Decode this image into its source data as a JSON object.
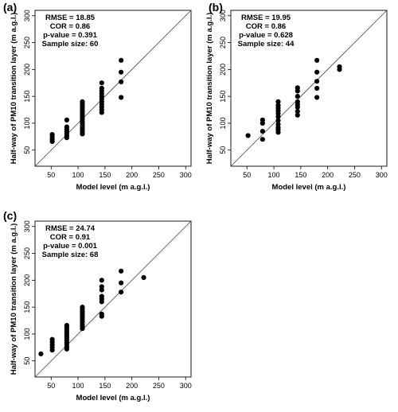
{
  "chart_data": [
    {
      "type": "scatter",
      "panel_label": "(a)",
      "xlabel": "Model level (m a.g.l.)",
      "ylabel": "Half-way of PM10 transition layer (m a.g.l.)",
      "xlim": [
        20,
        310
      ],
      "ylim": [
        20,
        310
      ],
      "x_ticks": [
        50,
        100,
        150,
        200,
        250,
        300
      ],
      "y_ticks": [
        50,
        100,
        150,
        200,
        250,
        300
      ],
      "reference_line": "1:1",
      "stats": [
        "RMSE = 18.85",
        "COR = 0.86",
        "p-value = 0.391",
        "Sample size: 60"
      ],
      "points": [
        [
          52,
          66
        ],
        [
          52,
          70
        ],
        [
          52,
          74
        ],
        [
          52,
          79
        ],
        [
          79,
          73
        ],
        [
          79,
          77
        ],
        [
          79,
          81
        ],
        [
          79,
          85
        ],
        [
          79,
          89
        ],
        [
          79,
          93
        ],
        [
          79,
          106
        ],
        [
          108,
          80
        ],
        [
          108,
          84
        ],
        [
          108,
          88
        ],
        [
          108,
          92
        ],
        [
          108,
          96
        ],
        [
          108,
          100
        ],
        [
          108,
          104
        ],
        [
          108,
          108
        ],
        [
          108,
          112
        ],
        [
          108,
          116
        ],
        [
          108,
          120
        ],
        [
          108,
          124
        ],
        [
          108,
          128
        ],
        [
          108,
          132
        ],
        [
          108,
          136
        ],
        [
          108,
          140
        ],
        [
          144,
          120
        ],
        [
          144,
          125
        ],
        [
          144,
          130
        ],
        [
          144,
          135
        ],
        [
          144,
          140
        ],
        [
          144,
          145
        ],
        [
          144,
          150
        ],
        [
          144,
          155
        ],
        [
          144,
          160
        ],
        [
          144,
          165
        ],
        [
          144,
          175
        ],
        [
          180,
          148
        ],
        [
          180,
          177
        ],
        [
          180,
          195
        ],
        [
          180,
          217
        ]
      ]
    },
    {
      "type": "scatter",
      "panel_label": "(b)",
      "xlabel": "Model level (m a.g.l.)",
      "ylabel": "Half-way of PM10 transition layer (m a.g.l.)",
      "xlim": [
        20,
        310
      ],
      "ylim": [
        20,
        310
      ],
      "x_ticks": [
        50,
        100,
        150,
        200,
        250,
        300
      ],
      "y_ticks": [
        50,
        100,
        150,
        200,
        250,
        300
      ],
      "reference_line": "1:1",
      "stats": [
        "RMSE = 19.95",
        "COR = 0.86",
        "p-value = 0.628",
        "Sample size: 44"
      ],
      "points": [
        [
          52,
          77
        ],
        [
          79,
          70
        ],
        [
          79,
          85
        ],
        [
          79,
          100
        ],
        [
          79,
          106
        ],
        [
          108,
          83
        ],
        [
          108,
          88
        ],
        [
          108,
          92
        ],
        [
          108,
          98
        ],
        [
          108,
          105
        ],
        [
          108,
          112
        ],
        [
          108,
          118
        ],
        [
          108,
          123
        ],
        [
          108,
          128
        ],
        [
          108,
          133
        ],
        [
          108,
          140
        ],
        [
          144,
          115
        ],
        [
          144,
          122
        ],
        [
          144,
          130
        ],
        [
          144,
          135
        ],
        [
          144,
          140
        ],
        [
          144,
          150
        ],
        [
          144,
          160
        ],
        [
          144,
          166
        ],
        [
          180,
          148
        ],
        [
          180,
          165
        ],
        [
          180,
          178
        ],
        [
          180,
          195
        ],
        [
          180,
          217
        ],
        [
          222,
          200
        ],
        [
          222,
          205
        ]
      ]
    },
    {
      "type": "scatter",
      "panel_label": "(c)",
      "xlabel": "Model level (m a.g.l.)",
      "ylabel": "Half-way of PM10 transition layer (m a.g.l.)",
      "xlim": [
        20,
        310
      ],
      "ylim": [
        20,
        310
      ],
      "x_ticks": [
        50,
        100,
        150,
        200,
        250,
        300
      ],
      "y_ticks": [
        50,
        100,
        150,
        200,
        250,
        300
      ],
      "reference_line": "1:1",
      "stats": [
        "RMSE = 24.74",
        "COR = 0.91",
        "p-value = 0.001",
        "Sample size: 68"
      ],
      "points": [
        [
          31,
          63
        ],
        [
          52,
          70
        ],
        [
          52,
          75
        ],
        [
          52,
          80
        ],
        [
          52,
          85
        ],
        [
          52,
          90
        ],
        [
          79,
          72
        ],
        [
          79,
          76
        ],
        [
          79,
          80
        ],
        [
          79,
          84
        ],
        [
          79,
          88
        ],
        [
          79,
          92
        ],
        [
          79,
          96
        ],
        [
          79,
          100
        ],
        [
          79,
          104
        ],
        [
          79,
          108
        ],
        [
          79,
          112
        ],
        [
          79,
          116
        ],
        [
          108,
          110
        ],
        [
          108,
          114
        ],
        [
          108,
          118
        ],
        [
          108,
          122
        ],
        [
          108,
          126
        ],
        [
          108,
          130
        ],
        [
          108,
          134
        ],
        [
          108,
          138
        ],
        [
          108,
          142
        ],
        [
          108,
          146
        ],
        [
          108,
          150
        ],
        [
          144,
          133
        ],
        [
          144,
          137
        ],
        [
          144,
          160
        ],
        [
          144,
          165
        ],
        [
          144,
          170
        ],
        [
          144,
          182
        ],
        [
          144,
          188
        ],
        [
          144,
          200
        ],
        [
          180,
          178
        ],
        [
          180,
          195
        ],
        [
          180,
          217
        ],
        [
          222,
          205
        ]
      ]
    }
  ]
}
